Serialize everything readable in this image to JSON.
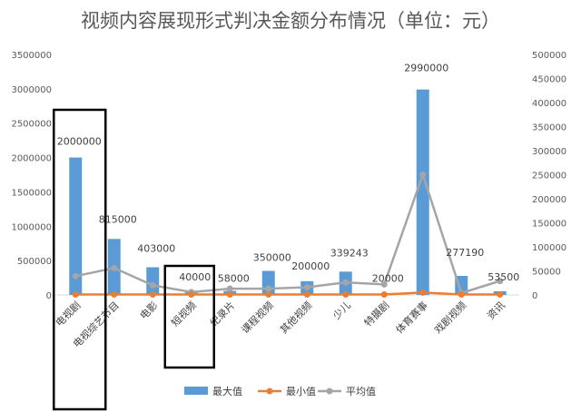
{
  "chart_data": {
    "type": "bar",
    "title": "视频内容展现形式判决金额分布情况（单位：元）",
    "categories": [
      "电视剧",
      "电视综艺节目",
      "电影",
      "短视频",
      "纪录片",
      "课程视频",
      "其他视频",
      "少儿",
      "特摄剧",
      "体育赛事",
      "戏剧视频",
      "资讯"
    ],
    "series": [
      {
        "name": "最大值",
        "axis": "left",
        "kind": "bar",
        "color": "#5B9BD5",
        "values": [
          2000000,
          815000,
          403000,
          40000,
          58000,
          350000,
          200000,
          339243,
          20000,
          2990000,
          277190,
          53500
        ]
      },
      {
        "name": "最小值",
        "axis": "right",
        "kind": "line",
        "color": "#ED7D31",
        "values": [
          1000,
          1000,
          1000,
          1000,
          1000,
          1000,
          1000,
          1000,
          1000,
          5000,
          1000,
          1000
        ]
      },
      {
        "name": "平均值",
        "axis": "right",
        "kind": "line",
        "color": "#A5A5A5",
        "values": [
          39000,
          56000,
          20000,
          6000,
          13000,
          13000,
          16000,
          26000,
          22000,
          250000,
          4000,
          29000
        ]
      }
    ],
    "data_labels": [
      "2000000",
      "815000",
      "403000",
      "40000",
      "58000",
      "350000",
      "200000",
      "339243",
      "20000",
      "2990000",
      "277190",
      "53500"
    ],
    "y_left": {
      "min": 0,
      "max": 3500000,
      "step": 500000,
      "ticks": [
        "0",
        "500000",
        "1000000",
        "1500000",
        "2000000",
        "2500000",
        "3000000",
        "3500000"
      ]
    },
    "y_right": {
      "min": 0,
      "max": 500000,
      "step": 50000,
      "ticks": [
        "0",
        "50000",
        "100000",
        "150000",
        "200000",
        "250000",
        "300000",
        "350000",
        "400000",
        "450000",
        "500000"
      ]
    },
    "grid": false,
    "legend_position": "bottom",
    "annotations": [
      "box around 电视剧",
      "box around 短视频"
    ]
  }
}
